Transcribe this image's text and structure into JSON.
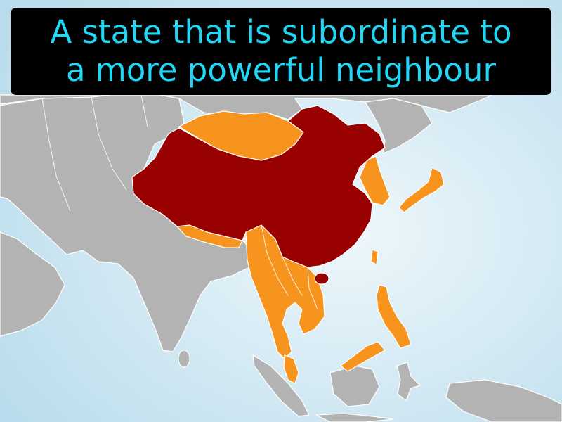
{
  "caption": {
    "line1": "A state that is subordinate to",
    "line2": "a more powerful neighbour"
  },
  "colors": {
    "caption_text": "#22d6f5",
    "caption_background": "#000000",
    "ocean_light": "#eef7fb",
    "ocean_dark": "#b9dcec",
    "land_neutral": "#b3b3b3",
    "dominant_state": "#990000",
    "tributary_states": "#f7941d"
  }
}
